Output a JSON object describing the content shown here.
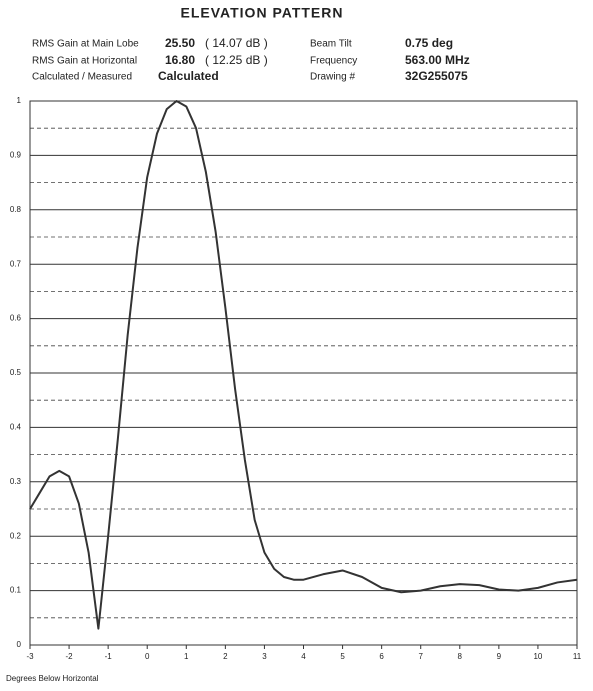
{
  "chart_data": {
    "type": "line",
    "title": "ELEVATION PATTERN",
    "info": [
      {
        "label": "RMS Gain at Main Lobe",
        "value": "25.50",
        "db": "( 14.07 dB )",
        "label2": "Beam Tilt",
        "value2": "0.75 deg"
      },
      {
        "label": "RMS Gain at Horizontal",
        "value": "16.80",
        "db": "( 12.25 dB )",
        "label2": "Frequency",
        "value2": "563.00 MHz"
      },
      {
        "label": "Calculated / Measured",
        "value": "Calculated",
        "label2": "Drawing #",
        "value2": "32G255075"
      }
    ],
    "x_label": "Degrees Below Horizontal",
    "x": [
      -3,
      -2.75,
      -2.5,
      -2.25,
      -2,
      -1.75,
      -1.5,
      -1.25,
      -1,
      -0.75,
      -0.5,
      -0.25,
      0,
      0.25,
      0.5,
      0.75,
      1,
      1.25,
      1.5,
      1.75,
      2,
      2.25,
      2.5,
      2.75,
      3,
      3.25,
      3.5,
      3.75,
      4,
      4.5,
      5,
      5.5,
      6,
      6.5,
      7,
      7.5,
      8,
      8.5,
      9,
      9.5,
      10,
      10.5,
      11
    ],
    "values": [
      0.25,
      0.28,
      0.31,
      0.32,
      0.31,
      0.26,
      0.17,
      0.03,
      0.2,
      0.38,
      0.57,
      0.73,
      0.86,
      0.94,
      0.985,
      1.0,
      0.99,
      0.95,
      0.87,
      0.76,
      0.62,
      0.47,
      0.34,
      0.23,
      0.17,
      0.14,
      0.125,
      0.12,
      0.12,
      0.13,
      0.137,
      0.125,
      0.105,
      0.097,
      0.1,
      0.108,
      0.112,
      0.11,
      0.102,
      0.1,
      0.105,
      0.115,
      0.12
    ],
    "color": "#333333",
    "xlim": [
      -3,
      11
    ],
    "xticks": [
      -3,
      -2,
      -1,
      0,
      1,
      2,
      3,
      4,
      5,
      6,
      7,
      8,
      9,
      10,
      11
    ],
    "ylim": [
      0,
      1
    ],
    "yticks": [
      0,
      0.1,
      0.2,
      0.3,
      0.4,
      0.5,
      0.6,
      0.7,
      0.8,
      0.9,
      1
    ],
    "minor_yticks": [
      0.05,
      0.15,
      0.25,
      0.35,
      0.45,
      0.55,
      0.65,
      0.75,
      0.85,
      0.95
    ],
    "grid": true
  }
}
